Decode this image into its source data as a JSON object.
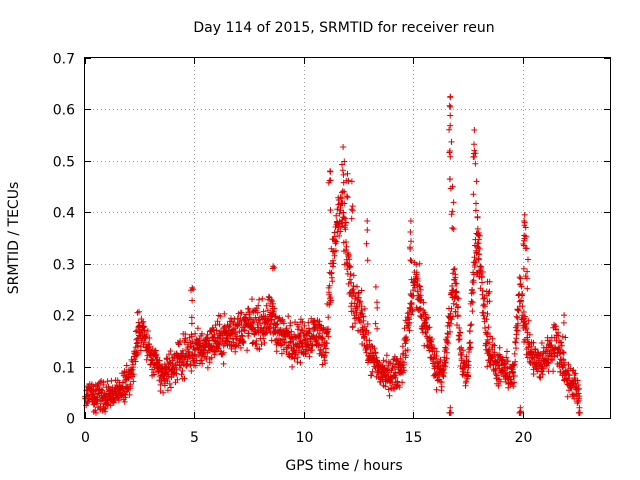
{
  "chart_data": {
    "type": "scatter",
    "title": "Day 114 of 2015, SRMTID for receiver reun",
    "xlabel": "GPS time / hours",
    "ylabel": "SRMTID / TECUs",
    "xlim": [
      0,
      24
    ],
    "ylim": [
      0,
      0.7
    ],
    "xticks": [
      0,
      5,
      10,
      15,
      20
    ],
    "yticks": [
      0,
      0.1,
      0.2,
      0.3,
      0.4,
      0.5,
      0.6,
      0.7
    ],
    "xtick_labels": [
      "0",
      "5",
      "10",
      "15",
      "20"
    ],
    "ytick_labels": [
      "0",
      "0.1",
      "0.2",
      "0.3",
      "0.4",
      "0.5",
      "0.6",
      "0.7"
    ],
    "grid": true,
    "marker": "+",
    "color": "#e00000",
    "x_extent": [
      0,
      22.6
    ],
    "trend": {
      "x": [
        0,
        0.5,
        1,
        1.5,
        2,
        2.3,
        2.5,
        3,
        3.5,
        4,
        4.5,
        5,
        5.5,
        6,
        6.5,
        7,
        7.5,
        8,
        8.5,
        9,
        9.5,
        10,
        10.5,
        11,
        11.3,
        11.6,
        11.9,
        12.2,
        12.6,
        13,
        13.5,
        14,
        14.5,
        14.9,
        15.1,
        15.4,
        15.7,
        16,
        16.4,
        16.7,
        16.9,
        17.2,
        17.5,
        17.8,
        18,
        18.4,
        18.8,
        19.2,
        19.6,
        19.9,
        20.1,
        20.4,
        20.8,
        21.2,
        21.6,
        22,
        22.4,
        22.6
      ],
      "y": [
        0.05,
        0.045,
        0.04,
        0.05,
        0.07,
        0.12,
        0.18,
        0.12,
        0.08,
        0.1,
        0.12,
        0.13,
        0.14,
        0.15,
        0.16,
        0.17,
        0.18,
        0.18,
        0.19,
        0.16,
        0.15,
        0.15,
        0.17,
        0.14,
        0.3,
        0.4,
        0.36,
        0.22,
        0.21,
        0.12,
        0.09,
        0.08,
        0.1,
        0.22,
        0.27,
        0.2,
        0.16,
        0.1,
        0.09,
        0.2,
        0.27,
        0.12,
        0.08,
        0.3,
        0.33,
        0.14,
        0.1,
        0.09,
        0.08,
        0.27,
        0.17,
        0.12,
        0.1,
        0.13,
        0.15,
        0.08,
        0.06,
        0.05
      ]
    },
    "scatter_spread": 0.04,
    "peaks": [
      {
        "x": 2.4,
        "y": 0.205
      },
      {
        "x": 4.9,
        "y": 0.253
      },
      {
        "x": 8.6,
        "y": 0.295
      },
      {
        "x": 11.2,
        "y": 0.48
      },
      {
        "x": 11.8,
        "y": 0.527
      },
      {
        "x": 12.0,
        "y": 0.475
      },
      {
        "x": 12.2,
        "y": 0.46
      },
      {
        "x": 12.9,
        "y": 0.383
      },
      {
        "x": 13.3,
        "y": 0.255
      },
      {
        "x": 14.9,
        "y": 0.383
      },
      {
        "x": 15.3,
        "y": 0.3
      },
      {
        "x": 16.7,
        "y": 0.625
      },
      {
        "x": 16.7,
        "y": 0.605
      },
      {
        "x": 16.7,
        "y": 0.508
      },
      {
        "x": 16.8,
        "y": 0.45
      },
      {
        "x": 16.9,
        "y": 0.29
      },
      {
        "x": 17.8,
        "y": 0.56
      },
      {
        "x": 17.8,
        "y": 0.52
      },
      {
        "x": 17.9,
        "y": 0.46
      },
      {
        "x": 18.0,
        "y": 0.36
      },
      {
        "x": 18.4,
        "y": 0.265
      },
      {
        "x": 18.5,
        "y": 0.265
      },
      {
        "x": 20.1,
        "y": 0.395
      },
      {
        "x": 20.1,
        "y": 0.38
      },
      {
        "x": 20.2,
        "y": 0.33
      },
      {
        "x": 21.9,
        "y": 0.2
      },
      {
        "x": 16.7,
        "y": 0.02
      },
      {
        "x": 19.9,
        "y": 0.02
      },
      {
        "x": 22.6,
        "y": 0.02
      }
    ]
  }
}
